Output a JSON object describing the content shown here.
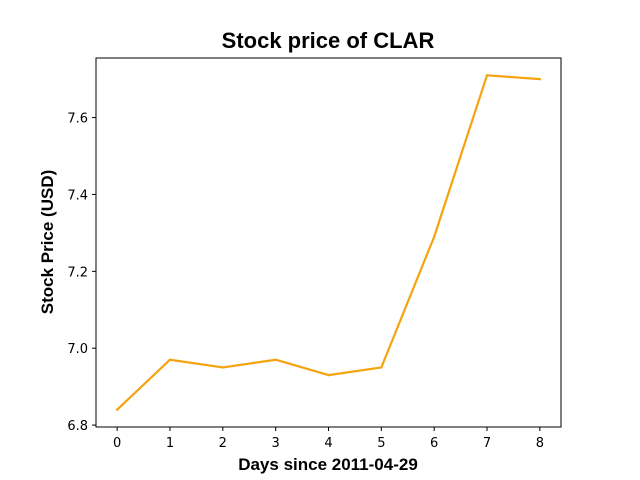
{
  "chart_data": {
    "type": "line",
    "title": "Stock price of CLAR",
    "xlabel": "Days since 2011-04-29",
    "ylabel": "Stock Price (USD)",
    "x": [
      0,
      1,
      2,
      3,
      4,
      5,
      6,
      7,
      8
    ],
    "x_ticks": [
      "0",
      "1",
      "2",
      "3",
      "4",
      "5",
      "6",
      "7",
      "8"
    ],
    "y_ticks": [
      "6.8",
      "7.0",
      "7.2",
      "7.4",
      "7.6"
    ],
    "series": [
      {
        "values": [
          6.84,
          6.97,
          6.95,
          6.97,
          6.93,
          6.95,
          7.29,
          7.71,
          7.7
        ],
        "color": "#f5a30f"
      }
    ],
    "xlim": [
      -0.4,
      8.4
    ],
    "ylim": [
      6.795,
      7.755
    ],
    "grid": false,
    "legend": "none"
  }
}
